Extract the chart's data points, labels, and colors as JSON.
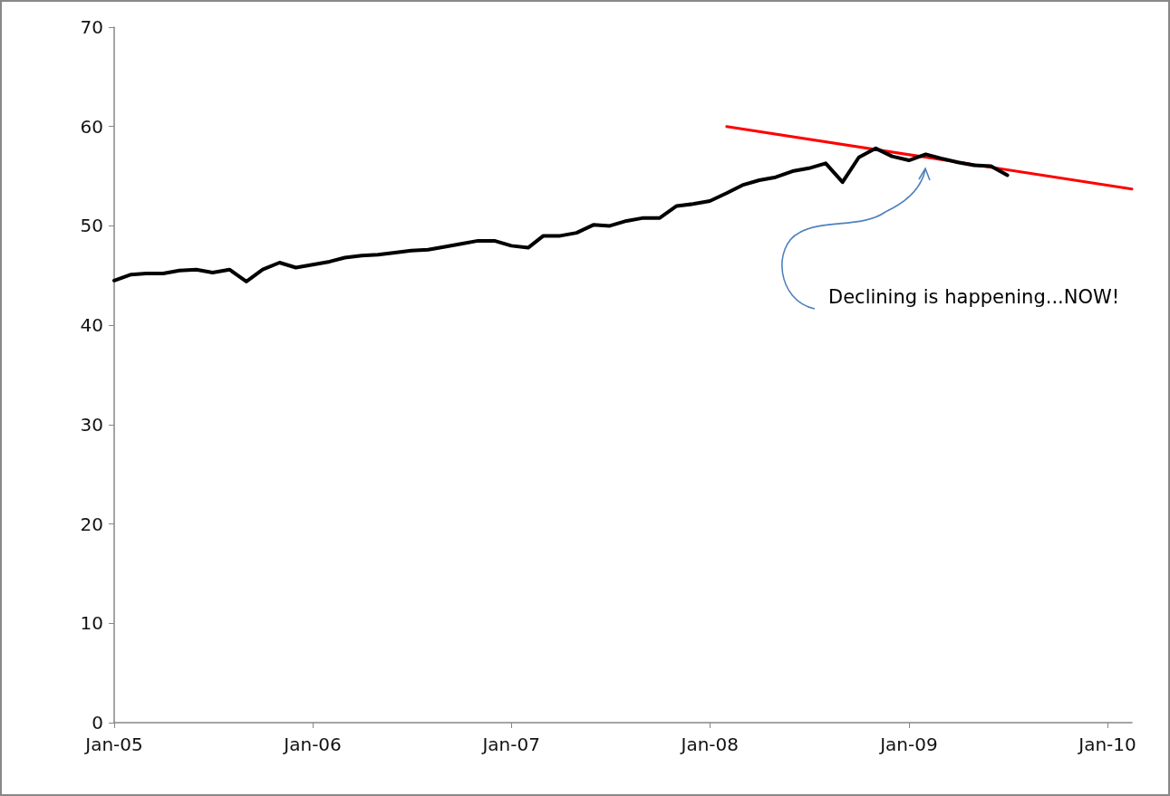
{
  "chart_data": {
    "type": "line",
    "x": [
      "2005-01",
      "2005-02",
      "2005-03",
      "2005-04",
      "2005-05",
      "2005-06",
      "2005-07",
      "2005-08",
      "2005-09",
      "2005-10",
      "2005-11",
      "2005-12",
      "2006-01",
      "2006-02",
      "2006-03",
      "2006-04",
      "2006-05",
      "2006-06",
      "2006-07",
      "2006-08",
      "2006-09",
      "2006-10",
      "2006-11",
      "2006-12",
      "2007-01",
      "2007-02",
      "2007-03",
      "2007-04",
      "2007-05",
      "2007-06",
      "2007-07",
      "2007-08",
      "2007-09",
      "2007-10",
      "2007-11",
      "2007-12",
      "2008-01",
      "2008-02",
      "2008-03",
      "2008-04",
      "2008-05",
      "2008-06",
      "2008-07",
      "2008-08",
      "2008-09",
      "2008-10",
      "2008-11",
      "2008-12",
      "2009-01",
      "2009-02",
      "2009-03",
      "2009-04",
      "2009-05",
      "2009-06",
      "2009-07"
    ],
    "series": [
      {
        "color": "#000000",
        "values": [
          44.5,
          45.1,
          45.2,
          45.2,
          45.5,
          45.6,
          45.3,
          45.6,
          44.4,
          45.6,
          46.3,
          45.8,
          46.1,
          46.4,
          46.8,
          47.0,
          47.1,
          47.3,
          47.5,
          47.6,
          47.9,
          48.2,
          48.5,
          48.5,
          48.0,
          47.8,
          49.0,
          49.0,
          49.3,
          50.1,
          50.0,
          50.5,
          50.8,
          50.8,
          52.0,
          52.2,
          52.5,
          53.3,
          54.1,
          54.6,
          54.9,
          55.5,
          55.8,
          56.3,
          54.4,
          56.9,
          57.8,
          57.0,
          56.6,
          57.2,
          56.8,
          56.4,
          56.1,
          56.0,
          55.1
        ]
      },
      {
        "type": "line",
        "color": "#ff0000",
        "x": [
          "2008-02-01",
          "2010-02-15"
        ],
        "values": [
          60.0,
          53.7
        ]
      }
    ],
    "xlim": [
      "2005-01-01",
      "2010-02-15"
    ],
    "xticks": [
      {
        "value": "2005-01-01",
        "label": "Jan-05"
      },
      {
        "value": "2006-01-01",
        "label": "Jan-06"
      },
      {
        "value": "2007-01-01",
        "label": "Jan-07"
      },
      {
        "value": "2008-01-01",
        "label": "Jan-08"
      },
      {
        "value": "2009-01-01",
        "label": "Jan-09"
      },
      {
        "value": "2010-01-01",
        "label": "Jan-10"
      }
    ],
    "ylim": [
      0,
      70
    ],
    "yticks": [
      0,
      10,
      20,
      30,
      40,
      50,
      60,
      70
    ],
    "grid": false,
    "marker": "none",
    "line_style": "solid",
    "annotations": [
      "Declining is happening...NOW!"
    ]
  }
}
